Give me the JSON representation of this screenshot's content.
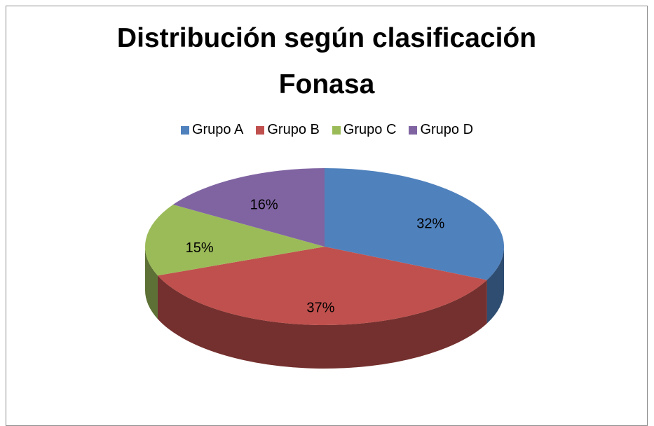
{
  "chart_data": {
    "type": "pie3d",
    "title": "Distribución según clasificación Fonasa",
    "categories": [
      "Grupo A",
      "Grupo B",
      "Grupo C",
      "Grupo D"
    ],
    "values": [
      32,
      37,
      15,
      16
    ],
    "value_labels": [
      "32%",
      "37%",
      "15%",
      "16%"
    ],
    "colors": [
      "#4f81bd",
      "#c0504d",
      "#9bbb59",
      "#8064a2"
    ],
    "legend": "top"
  }
}
